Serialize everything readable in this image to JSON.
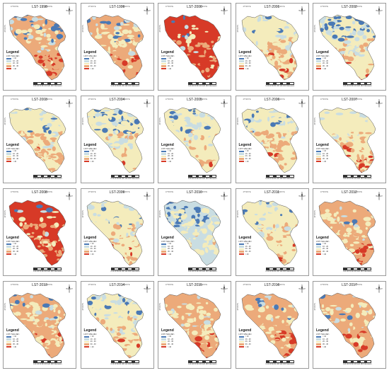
{
  "colors": {
    "class1": "#4a79b5",
    "class2": "#c9dde2",
    "class3": "#f4ecbc",
    "class4": "#ecaa7a",
    "class5": "#d73a27"
  },
  "legend": {
    "title": "Legend",
    "subtitle": "LST<VALUE>",
    "classes": [
      "< 10",
      "10 - 20",
      "20 - 30",
      "30 - 40",
      "> 40"
    ]
  },
  "scale": {
    "ticks": "0   20   40   60   80   100   120   160",
    "unit": "Kilometers"
  },
  "north": {
    "letters": "N",
    "east": "E",
    "west": "W",
    "south": "S"
  },
  "coords": {
    "lon1": "47°00'0\"E",
    "lon2": "48°00'0\"E",
    "lat": "35°00'0\"N"
  },
  "panels": [
    {
      "title": "LST-1998",
      "dist": [
        0.1,
        0.1,
        0.22,
        0.33,
        0.25
      ]
    },
    {
      "title": "LST-1999",
      "dist": [
        0.05,
        0.08,
        0.27,
        0.38,
        0.22
      ]
    },
    {
      "title": "LST-2000",
      "dist": [
        0.02,
        0.03,
        0.1,
        0.25,
        0.6
      ]
    },
    {
      "title": "LST-2001",
      "dist": [
        0.05,
        0.12,
        0.45,
        0.33,
        0.05
      ]
    },
    {
      "title": "LST-2002",
      "dist": [
        0.2,
        0.25,
        0.3,
        0.2,
        0.05
      ]
    },
    {
      "title": "LST-2003",
      "dist": [
        0.03,
        0.07,
        0.45,
        0.4,
        0.05
      ]
    },
    {
      "title": "LST-2004",
      "dist": [
        0.18,
        0.2,
        0.5,
        0.1,
        0.02
      ]
    },
    {
      "title": "LST-2005",
      "dist": [
        0.15,
        0.22,
        0.48,
        0.13,
        0.02
      ]
    },
    {
      "title": "LST-2006",
      "dist": [
        0.05,
        0.1,
        0.4,
        0.4,
        0.05
      ]
    },
    {
      "title": "LST-2007",
      "dist": [
        0.03,
        0.07,
        0.42,
        0.28,
        0.2
      ]
    },
    {
      "title": "LST-2008",
      "dist": [
        0.02,
        0.03,
        0.1,
        0.25,
        0.6
      ]
    },
    {
      "title": "LST-2009",
      "dist": [
        0.07,
        0.13,
        0.4,
        0.35,
        0.05
      ]
    },
    {
      "title": "LST-2010",
      "dist": [
        0.25,
        0.35,
        0.35,
        0.05,
        0.0
      ]
    },
    {
      "title": "LST-2011",
      "dist": [
        0.05,
        0.1,
        0.55,
        0.27,
        0.03
      ]
    },
    {
      "title": "LST-2012",
      "dist": [
        0.03,
        0.05,
        0.22,
        0.4,
        0.3
      ]
    },
    {
      "title": "LST-2013",
      "dist": [
        0.03,
        0.07,
        0.35,
        0.45,
        0.1
      ]
    },
    {
      "title": "LST-2014",
      "dist": [
        0.08,
        0.12,
        0.55,
        0.22,
        0.03
      ]
    },
    {
      "title": "LST-2015",
      "dist": [
        0.03,
        0.05,
        0.22,
        0.35,
        0.35
      ]
    },
    {
      "title": "LST-2016",
      "dist": [
        0.03,
        0.05,
        0.27,
        0.4,
        0.25
      ]
    },
    {
      "title": "LST-2017",
      "dist": [
        0.03,
        0.05,
        0.27,
        0.35,
        0.3
      ]
    }
  ]
}
